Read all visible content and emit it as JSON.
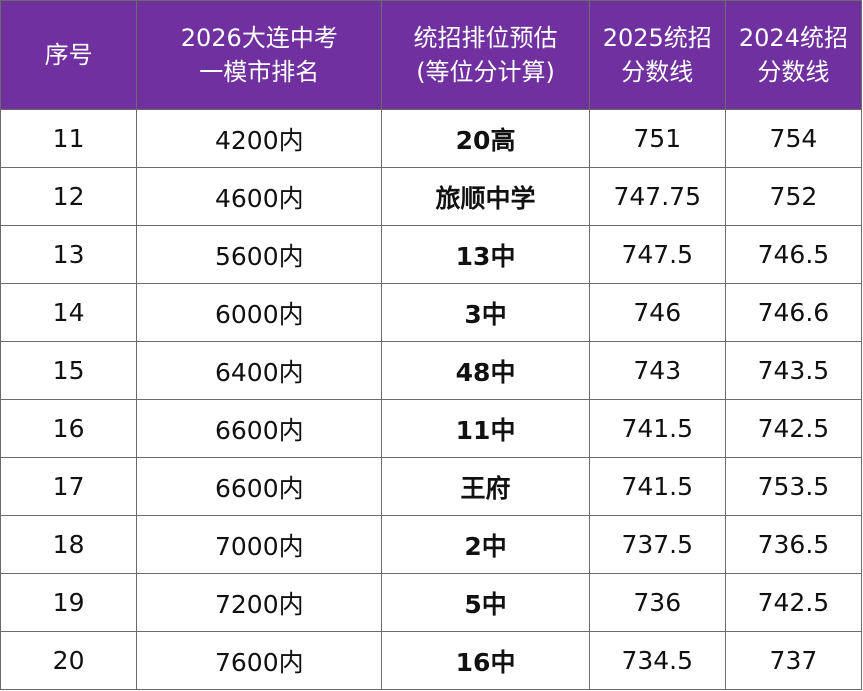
{
  "table": {
    "headers": [
      {
        "lines": [
          "序号"
        ]
      },
      {
        "lines": [
          "2026大连中考",
          "一模市排名"
        ]
      },
      {
        "lines": [
          "统招排位预估",
          "(等位分计算)"
        ]
      },
      {
        "lines": [
          "2025统招",
          "分数线"
        ]
      },
      {
        "lines": [
          "2024统招",
          "分数线"
        ]
      }
    ],
    "rows": [
      {
        "no": "11",
        "rank": "4200内",
        "school": "20高",
        "score_2025": "751",
        "score_2024": "754"
      },
      {
        "no": "12",
        "rank": "4600内",
        "school": "旅顺中学",
        "score_2025": "747.75",
        "score_2024": "752"
      },
      {
        "no": "13",
        "rank": "5600内",
        "school": "13中",
        "score_2025": "747.5",
        "score_2024": "746.5"
      },
      {
        "no": "14",
        "rank": "6000内",
        "school": "3中",
        "score_2025": "746",
        "score_2024": "746.6"
      },
      {
        "no": "15",
        "rank": "6400内",
        "school": "48中",
        "score_2025": "743",
        "score_2024": "743.5"
      },
      {
        "no": "16",
        "rank": "6600内",
        "school": "11中",
        "score_2025": "741.5",
        "score_2024": "742.5"
      },
      {
        "no": "17",
        "rank": "6600内",
        "school": "王府",
        "score_2025": "741.5",
        "score_2024": "753.5"
      },
      {
        "no": "18",
        "rank": "7000内",
        "school": "2中",
        "score_2025": "737.5",
        "score_2024": "736.5"
      },
      {
        "no": "19",
        "rank": "7200内",
        "school": "5中",
        "score_2025": "736",
        "score_2024": "742.5"
      },
      {
        "no": "20",
        "rank": "7600内",
        "school": "16中",
        "score_2025": "734.5",
        "score_2024": "737"
      }
    ]
  },
  "colors": {
    "header_bg": "#7030a0",
    "header_text": "#ffffff",
    "border": "#6b6b6b",
    "cell_text": "#111111"
  }
}
